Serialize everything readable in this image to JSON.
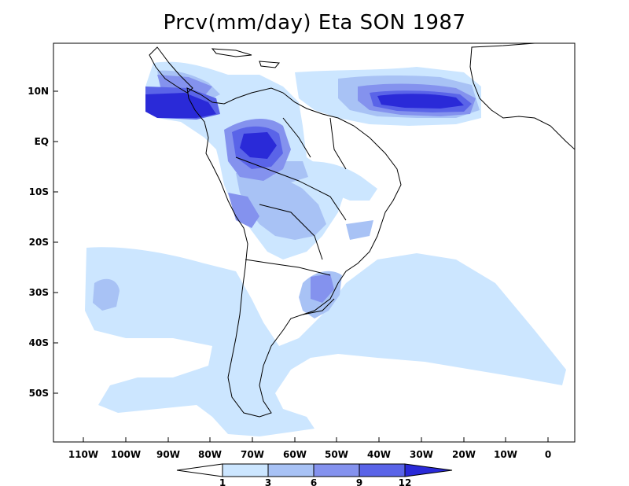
{
  "title": "Prcv(mm/day) Eta SON 1987",
  "lat_labels": [
    "10N",
    "EQ",
    "10S",
    "20S",
    "30S",
    "40S",
    "50S"
  ],
  "lon_labels": [
    "110W",
    "100W",
    "90W",
    "80W",
    "70W",
    "60W",
    "50W",
    "40W",
    "30W",
    "20W",
    "10W",
    "0"
  ],
  "colorbar": {
    "labels": [
      "1",
      "3",
      "6",
      "9",
      "12"
    ],
    "colors": [
      "#ffffff",
      "#cce6ff",
      "#a8c2f5",
      "#8492ee",
      "#5a64e8",
      "#2a2ad8"
    ]
  },
  "colors": {
    "land_outline": "#000000",
    "level1": "#cce6ff",
    "level2": "#a8c2f5",
    "level3": "#8492ee",
    "level4": "#5a64e8",
    "level5": "#2a2ad8"
  }
}
